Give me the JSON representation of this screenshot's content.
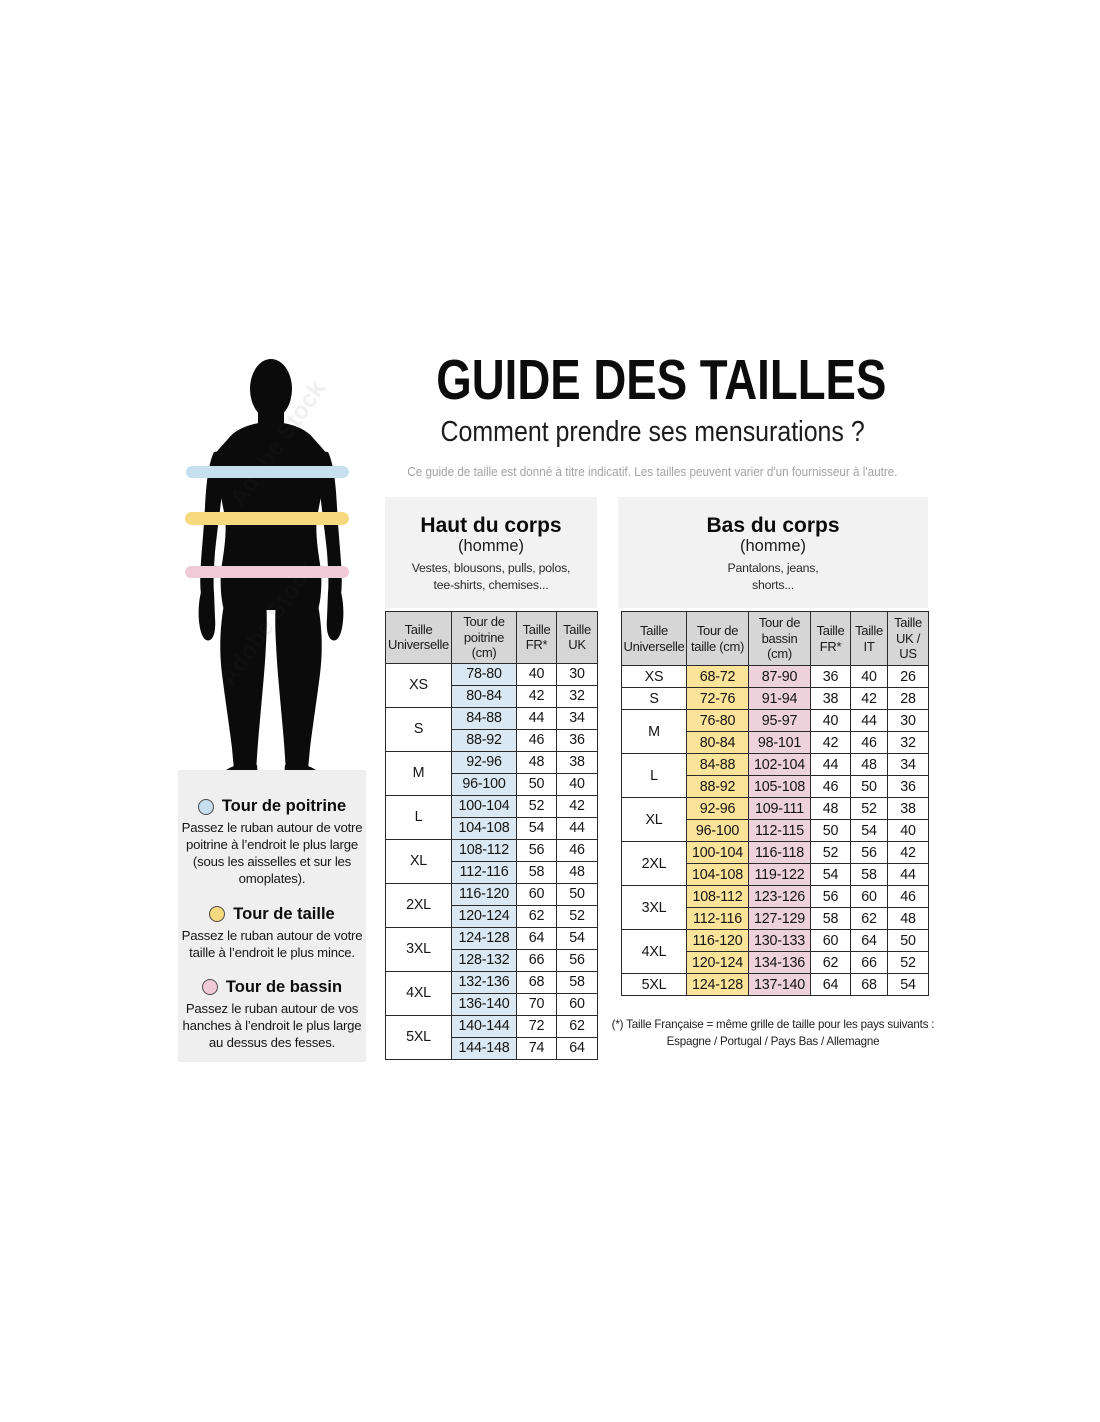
{
  "page": {
    "title": "GUIDE DES TAILLES",
    "subtitle": "Comment prendre ses mensurations ?",
    "note": "Ce guide de taille est donné à titre indicatif. Les tailles peuvent varier d'un fournisseur à l'autre."
  },
  "figure": {
    "watermark": "Adobe Stock"
  },
  "colors": {
    "chest_blue": "#d9e8f2",
    "waist_yellow": "#fbe49a",
    "hips_pink": "#edd2dc",
    "band_blue": "#c6dfee",
    "band_yellow": "#f6d97e",
    "band_pink": "#efcbd7",
    "header_gray": "#d6d6d6",
    "panel_gray": "#f2f2f2",
    "legend_gray": "#f0efef"
  },
  "legend": {
    "items": [
      {
        "name": "chest",
        "label": "Tour de poitrine",
        "description": "Passez le ruban autour de votre\npoitrine à l’endroit le plus large\n(sous les aisselles et sur les\nomoplates)."
      },
      {
        "name": "waist",
        "label": "Tour de taille",
        "description": "Passez le ruban autour de votre\ntaille à l’endroit le plus mince."
      },
      {
        "name": "hips",
        "label": "Tour de bassin",
        "description": "Passez le ruban autour de vos\nhanches à l’endroit le plus large\nau dessus des fesses."
      }
    ]
  },
  "upper_table": {
    "title": "Haut du corps",
    "subtitle": "(homme)",
    "items_note": "Vestes, blousons, pulls, polos,\ntee-shirts, chemises...",
    "headers": [
      "Taille Universelle",
      "Tour de poitrine (cm)",
      "Taille FR*",
      "Taille UK"
    ],
    "value_col_colors": [
      "chest_blue",
      null,
      null
    ],
    "groups": [
      {
        "size": "XS",
        "rows": [
          [
            "78-80",
            "40",
            "30"
          ],
          [
            "80-84",
            "42",
            "32"
          ]
        ]
      },
      {
        "size": "S",
        "rows": [
          [
            "84-88",
            "44",
            "34"
          ],
          [
            "88-92",
            "46",
            "36"
          ]
        ]
      },
      {
        "size": "M",
        "rows": [
          [
            "92-96",
            "48",
            "38"
          ],
          [
            "96-100",
            "50",
            "40"
          ]
        ]
      },
      {
        "size": "L",
        "rows": [
          [
            "100-104",
            "52",
            "42"
          ],
          [
            "104-108",
            "54",
            "44"
          ]
        ]
      },
      {
        "size": "XL",
        "rows": [
          [
            "108-112",
            "56",
            "46"
          ],
          [
            "112-116",
            "58",
            "48"
          ]
        ]
      },
      {
        "size": "2XL",
        "rows": [
          [
            "116-120",
            "60",
            "50"
          ],
          [
            "120-124",
            "62",
            "52"
          ]
        ]
      },
      {
        "size": "3XL",
        "rows": [
          [
            "124-128",
            "64",
            "54"
          ],
          [
            "128-132",
            "66",
            "56"
          ]
        ]
      },
      {
        "size": "4XL",
        "rows": [
          [
            "132-136",
            "68",
            "58"
          ],
          [
            "136-140",
            "70",
            "60"
          ]
        ]
      },
      {
        "size": "5XL",
        "rows": [
          [
            "140-144",
            "72",
            "62"
          ],
          [
            "144-148",
            "74",
            "64"
          ]
        ]
      }
    ]
  },
  "lower_table": {
    "title": "Bas du corps",
    "subtitle": "(homme)",
    "items_note": "Pantalons, jeans,\nshorts...",
    "headers": [
      "Taille Universelle",
      "Tour de taille (cm)",
      "Tour de bassin (cm)",
      "Taille FR*",
      "Taille IT",
      "Taille UK / US"
    ],
    "value_col_colors": [
      "waist_yellow",
      "hips_pink",
      null,
      null,
      null
    ],
    "groups": [
      {
        "size": "XS",
        "rows": [
          [
            "68-72",
            "87-90",
            "36",
            "40",
            "26"
          ]
        ]
      },
      {
        "size": "S",
        "rows": [
          [
            "72-76",
            "91-94",
            "38",
            "42",
            "28"
          ]
        ]
      },
      {
        "size": "M",
        "rows": [
          [
            "76-80",
            "95-97",
            "40",
            "44",
            "30"
          ],
          [
            "80-84",
            "98-101",
            "42",
            "46",
            "32"
          ]
        ]
      },
      {
        "size": "L",
        "rows": [
          [
            "84-88",
            "102-104",
            "44",
            "48",
            "34"
          ],
          [
            "88-92",
            "105-108",
            "46",
            "50",
            "36"
          ]
        ]
      },
      {
        "size": "XL",
        "rows": [
          [
            "92-96",
            "109-111",
            "48",
            "52",
            "38"
          ],
          [
            "96-100",
            "112-115",
            "50",
            "54",
            "40"
          ]
        ]
      },
      {
        "size": "2XL",
        "rows": [
          [
            "100-104",
            "116-118",
            "52",
            "56",
            "42"
          ],
          [
            "104-108",
            "119-122",
            "54",
            "58",
            "44"
          ]
        ]
      },
      {
        "size": "3XL",
        "rows": [
          [
            "108-112",
            "123-126",
            "56",
            "60",
            "46"
          ],
          [
            "112-116",
            "127-129",
            "58",
            "62",
            "48"
          ]
        ]
      },
      {
        "size": "4XL",
        "rows": [
          [
            "116-120",
            "130-133",
            "60",
            "64",
            "50"
          ],
          [
            "120-124",
            "134-136",
            "62",
            "66",
            "52"
          ]
        ]
      },
      {
        "size": "5XL",
        "rows": [
          [
            "124-128",
            "137-140",
            "64",
            "68",
            "54"
          ]
        ]
      }
    ]
  },
  "footnote": {
    "line1": "(*) Taille Française = même grille de taille pour les pays suivants :",
    "line2": "Espagne / Portugal / Pays Bas / Allemagne"
  }
}
